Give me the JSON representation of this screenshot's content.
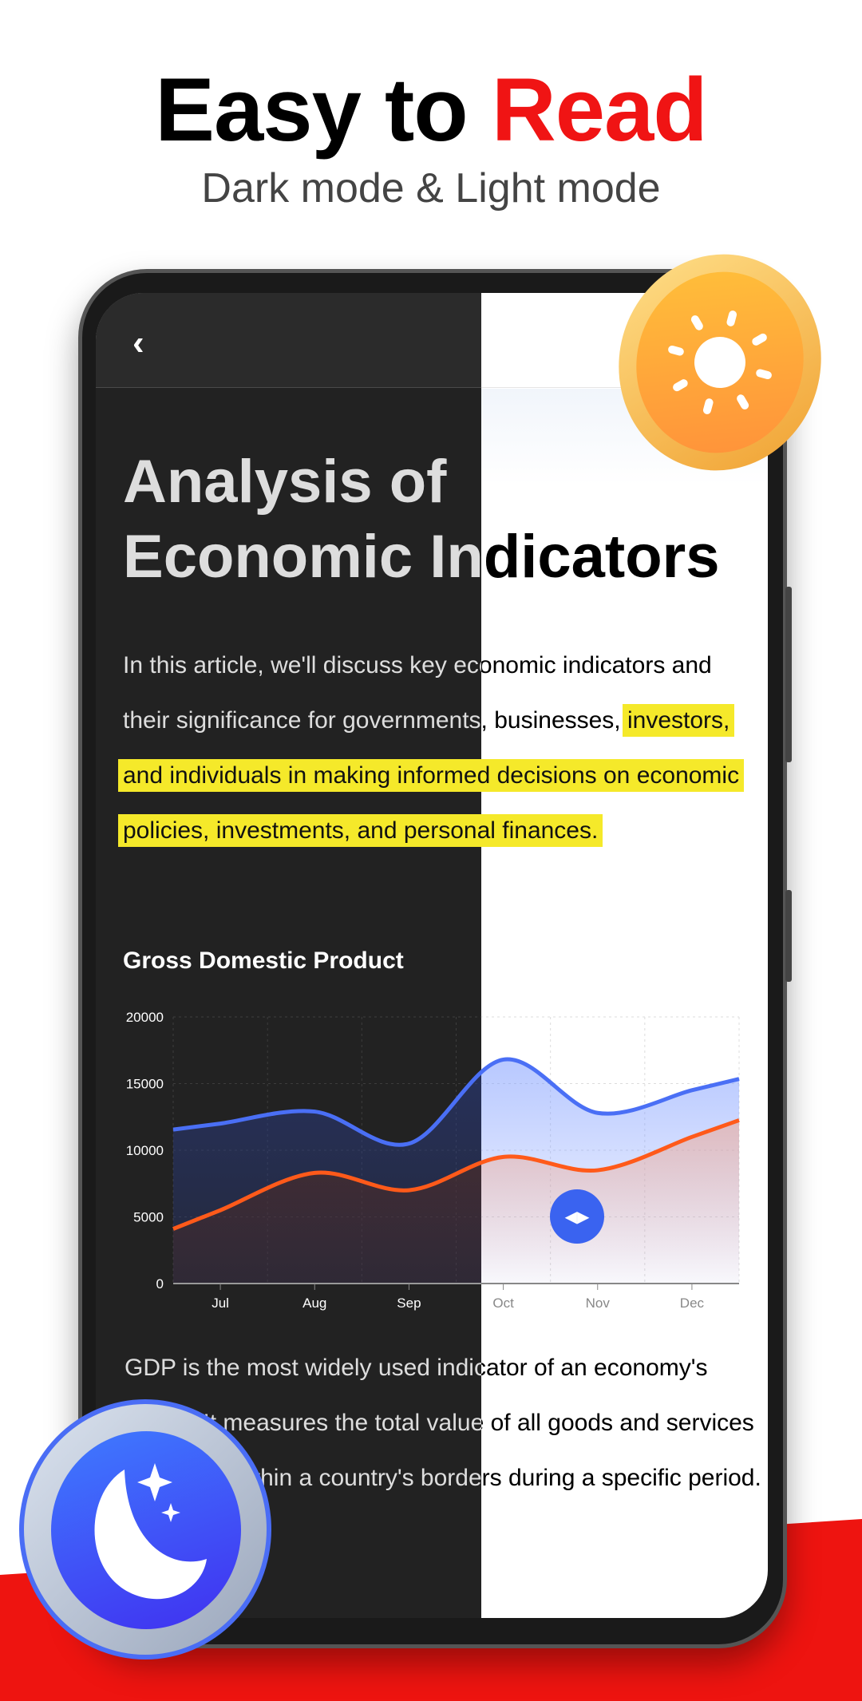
{
  "hero": {
    "title_part1": "Easy to ",
    "title_part2": "Read",
    "subtitle": "Dark mode & Light mode"
  },
  "colors": {
    "accent_red": "#f01414",
    "highlight": "#f5e92a",
    "blue_series": "#4a6ff5",
    "orange_series": "#ff5a1a",
    "dark_bg": "#222222",
    "handle": "#3a63f0"
  },
  "icons": {
    "back": "chevron-left-icon",
    "sun": "sun-icon",
    "moon": "moon-stars-icon",
    "handle": "split-handle-arrows-icon"
  },
  "article": {
    "back_label": "‹",
    "title_line1": "Analysis of",
    "title_line2": "Economic Indicators",
    "intro_plain": "In this article, we'll discuss key economic indicators and their significance for governments, businesses, ",
    "intro_highlighted": "investors, and individuals in making informed decisions on economic policies, investments, and personal finances.",
    "chart_heading": "Gross Domestic Product",
    "gdp_text": "GDP is the most widely used indicator of an economy's health. It measures the total value of all goods and services produced within a country's borders during a specific period."
  },
  "chart_data": {
    "type": "area",
    "categories": [
      "Jul",
      "Aug",
      "Sep",
      "Oct",
      "Nov",
      "Dec"
    ],
    "yticks": [
      "0",
      "5000",
      "10000",
      "15000",
      "20000"
    ],
    "ylim": [
      0,
      20000
    ],
    "grid": true,
    "series": [
      {
        "color": "#4a6ff5",
        "values": [
          12000,
          12900,
          10500,
          16800,
          12800,
          14500
        ]
      },
      {
        "color": "#ff5a1a",
        "values": [
          5500,
          8300,
          7000,
          9500,
          8500,
          11000
        ]
      }
    ]
  }
}
